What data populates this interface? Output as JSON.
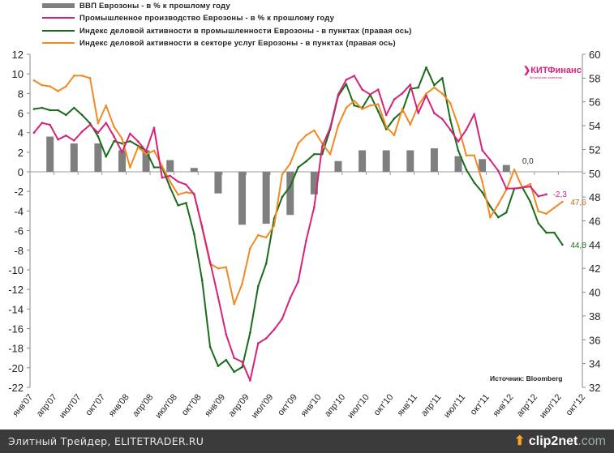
{
  "chart_data": {
    "type": "bar+line",
    "legend": [
      {
        "label": "ВВП Еврозоны - в % к прошлому году",
        "kind": "bar",
        "color": "#7f7f7f"
      },
      {
        "label": "Промышленное производство Еврозоны - в % к прошлому году",
        "kind": "line",
        "color": "#d6237a"
      },
      {
        "label": "Индекс деловой активности в промышленности Еврозоны - в пунктах (правая ось)",
        "kind": "line",
        "color": "#1a6b1a"
      },
      {
        "label": "Индекс деловой активности в секторе услуг Еврозоны - в пунктах (правая ось)",
        "kind": "line",
        "color": "#f08a24"
      }
    ],
    "x_tick_labels": [
      "янв'07",
      "апр'07",
      "июл'07",
      "окт'07",
      "янв'08",
      "апр'08",
      "июл'08",
      "окт'08",
      "янв'09",
      "апр'09",
      "июл'09",
      "окт'09",
      "янв'10",
      "апр'10",
      "июл'10",
      "окт'10",
      "янв'11",
      "апр'11",
      "июл'11",
      "окт'11",
      "янв'12",
      "апр'12",
      "июл'12",
      "окт'12"
    ],
    "x_range_months": "янв'07 – окт'12 (monthly)",
    "left_axis": {
      "ylim": [
        -22,
        12
      ],
      "ticks": [
        12,
        10,
        8,
        6,
        4,
        2,
        0,
        -2,
        -4,
        -6,
        -8,
        -10,
        -12,
        -14,
        -16,
        -18,
        -20,
        -22
      ]
    },
    "right_axis": {
      "ylim": [
        32,
        60
      ],
      "ticks": [
        60,
        58,
        56,
        54,
        52,
        50,
        48,
        46,
        44,
        42,
        40,
        38,
        36,
        34,
        32
      ]
    },
    "series": [
      {
        "name": "ВВП Еврозоны - в % к прошлому году",
        "axis": "left",
        "type": "bar",
        "frequency": "quarterly",
        "start_month_index": 2,
        "values": [
          3.6,
          2.9,
          2.9,
          2.2,
          2.2,
          1.2,
          0.4,
          -2.2,
          -5.4,
          -5.3,
          -4.4,
          -2.3,
          1.1,
          2.2,
          2.2,
          2.2,
          2.4,
          1.6,
          1.3,
          0.7,
          0.0
        ]
      },
      {
        "name": "Промышленное производство Еврозоны - в % к прошлому году",
        "axis": "left",
        "type": "line",
        "frequency": "monthly",
        "start_month_index": 0,
        "values": [
          4.0,
          5.0,
          4.8,
          3.3,
          3.7,
          3.2,
          4.1,
          4.8,
          4.0,
          5.0,
          3.6,
          2.0,
          3.9,
          3.1,
          2.1,
          4.5,
          -0.6,
          -0.4,
          -1.0,
          -1.3,
          -2.3,
          -5.6,
          -9.2,
          -12.8,
          -16.6,
          -19.0,
          -19.4,
          -21.3,
          -17.5,
          -17.0,
          -16.1,
          -15.0,
          -12.9,
          -11.2,
          -7.0,
          -3.6,
          2.6,
          4.5,
          7.9,
          9.4,
          9.8,
          8.4,
          7.9,
          8.4,
          5.8,
          7.4,
          8.0,
          8.9,
          6.0,
          7.8,
          6.0,
          5.4,
          4.3,
          3.1,
          4.3,
          5.9,
          2.2,
          1.2,
          0.1,
          -1.7,
          -1.7,
          -1.6,
          -1.5,
          -2.5,
          -2.3
        ]
      },
      {
        "name": "Индекс деловой активности в промышленности Еврозоны",
        "axis": "right",
        "type": "line",
        "frequency": "monthly",
        "start_month_index": 0,
        "values": [
          55.4,
          55.5,
          55.3,
          55.3,
          54.9,
          55.5,
          54.9,
          54.2,
          53.1,
          51.4,
          52.7,
          52.5,
          52.7,
          52.3,
          51.9,
          50.5,
          50.5,
          48.8,
          47.3,
          47.5,
          44.9,
          41.0,
          35.4,
          33.8,
          34.3,
          33.3,
          33.7,
          36.6,
          40.5,
          42.4,
          46.2,
          48.0,
          48.9,
          50.5,
          51.0,
          51.6,
          51.6,
          53.7,
          56.5,
          57.5,
          55.7,
          55.5,
          56.6,
          55.2,
          53.7,
          54.6,
          55.2,
          57.1,
          57.2,
          58.9,
          57.4,
          58.0,
          54.5,
          51.9,
          50.3,
          49.2,
          48.4,
          47.2,
          46.3,
          46.7,
          48.7,
          48.8,
          47.6,
          45.8,
          45.0,
          45.0,
          44.0
        ]
      },
      {
        "name": "Индекс деловой активности в секторе услуг Еврозоны",
        "axis": "right",
        "type": "line",
        "frequency": "monthly",
        "start_month_index": 0,
        "values": [
          57.8,
          57.4,
          57.3,
          56.9,
          57.3,
          58.2,
          58.2,
          58.0,
          54.2,
          55.7,
          53.9,
          52.9,
          50.5,
          52.2,
          51.6,
          51.9,
          50.6,
          49.3,
          48.2,
          48.4,
          48.3,
          45.4,
          42.4,
          42.0,
          42.1,
          39.0,
          40.7,
          43.7,
          44.8,
          44.6,
          45.6,
          49.9,
          50.8,
          52.5,
          53.2,
          53.6,
          52.5,
          51.6,
          54.0,
          55.5,
          56.1,
          55.4,
          55.7,
          55.8,
          53.9,
          53.2,
          55.4,
          54.1,
          55.7,
          56.7,
          57.2,
          56.7,
          55.9,
          54.0,
          51.5,
          51.5,
          49.3,
          46.3,
          47.4,
          48.6,
          50.3,
          48.8,
          49.1,
          46.8,
          46.6,
          47.1,
          47.6
        ]
      }
    ],
    "data_labels": {
      "gdp_last": "0,0",
      "ip_last": "-2,3",
      "services_last": "47,6",
      "manufacturing_last": "44,0"
    },
    "source": "Источник: Bloomberg"
  },
  "logo": {
    "name": "КИТФинанс",
    "subtitle": "брокерская компания"
  },
  "footer": {
    "text": "Элитный Трейдер, ELITETRADER.RU",
    "brand_a": "clip2net",
    "brand_b": ".com"
  }
}
